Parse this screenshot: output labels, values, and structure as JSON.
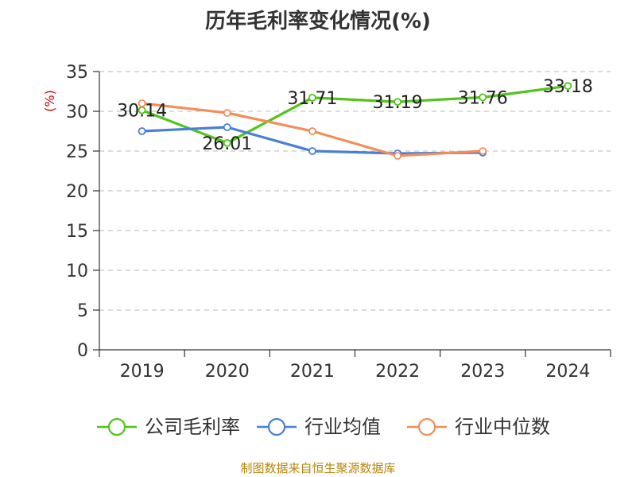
{
  "title": "历年毛利率变化情况(%)",
  "source": "制图数据来自恒生聚源数据库",
  "chart_data": {
    "type": "line",
    "title": "历年毛利率变化情况(%)",
    "ylabel": "(%)",
    "xlabel": "",
    "categories": [
      "2019",
      "2020",
      "2021",
      "2022",
      "2023",
      "2024"
    ],
    "ylim": [
      0,
      35
    ],
    "yticks": [
      0,
      5,
      10,
      15,
      20,
      25,
      30,
      35
    ],
    "grid": true,
    "legend": "bottom",
    "series": [
      {
        "name": "公司毛利率",
        "color": "#52c41a",
        "values": [
          30.14,
          26.01,
          31.71,
          31.19,
          31.76,
          33.18
        ],
        "labels": [
          "30.14",
          "26.01",
          "31.71",
          "31.19",
          "31.76",
          "33.18"
        ]
      },
      {
        "name": "行业均值",
        "color": "#4a7fd8",
        "values": [
          27.5,
          28.0,
          25.0,
          24.7,
          24.8,
          null
        ]
      },
      {
        "name": "行业中位数",
        "color": "#f28e5b",
        "values": [
          31.0,
          29.8,
          27.5,
          24.4,
          25.0,
          null
        ]
      }
    ]
  }
}
